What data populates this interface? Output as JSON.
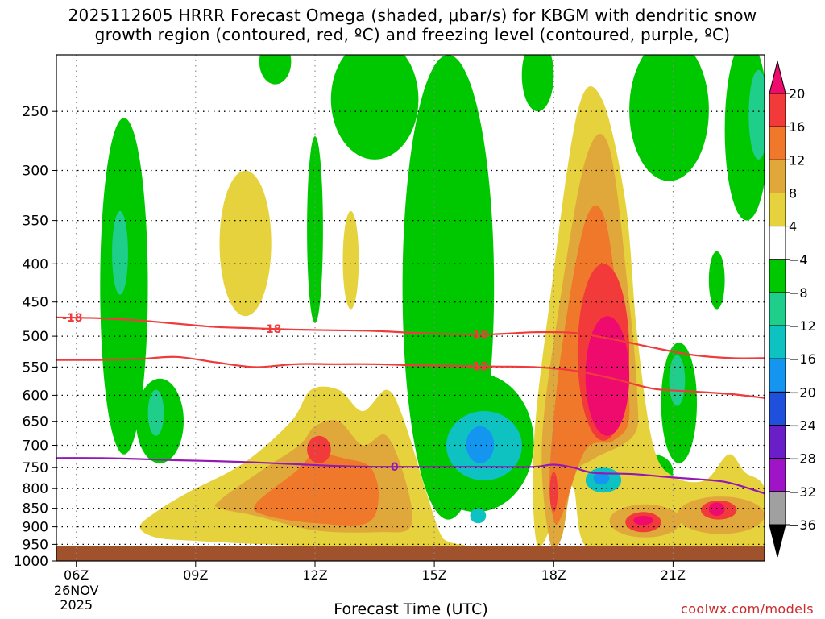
{
  "title_line1": "2025112605 HRRR Forecast Omega (shaded, μbar/s) for KBGM with dendritic snow",
  "title_line2": "growth region (contoured, red, ºC) and freezing level (contoured, purple, ºC)",
  "xlabel": "Forecast Time (UTC)",
  "credit": "coolwx.com/models",
  "chart_data": {
    "type": "heatmap",
    "title": "2025112605 HRRR Forecast Omega (shaded, μbar/s) for KBGM with dendritic snow growth region (contoured, red, ºC) and freezing level (contoured, purple, ºC)",
    "xlabel": "Forecast Time (UTC)",
    "ylabel": "",
    "x_range": [
      5.5,
      23.3
    ],
    "y_range_hpa": [
      1000,
      210
    ],
    "y_scale": "log-pressure",
    "grid": true,
    "x_ticks": [
      {
        "t": 6,
        "label": "06Z",
        "sub": [
          "26NOV",
          "2025"
        ]
      },
      {
        "t": 9,
        "label": "09Z"
      },
      {
        "t": 12,
        "label": "12Z"
      },
      {
        "t": 15,
        "label": "15Z"
      },
      {
        "t": 18,
        "label": "18Z"
      },
      {
        "t": 21,
        "label": "21Z"
      }
    ],
    "y_ticks": [
      250,
      300,
      350,
      400,
      450,
      500,
      550,
      600,
      650,
      700,
      750,
      800,
      850,
      900,
      950,
      1000
    ],
    "terrain_below_hpa": 955,
    "colorbar": {
      "levels": [
        20,
        16,
        12,
        8,
        4,
        -4,
        -8,
        -12,
        -16,
        -20,
        -24,
        -28,
        -32,
        -36
      ],
      "colors": [
        "#ef0a6e",
        "#f23a3a",
        "#f0782a",
        "#e0a83a",
        "#e6d23c",
        "#ffffff",
        "#00c800",
        "#1ece8a",
        "#0fc2c2",
        "#1496f0",
        "#1e50dc",
        "#6a1ec8",
        "#a014c8",
        "#a0a0a0",
        "#000000"
      ]
    },
    "omega_regions": [
      {
        "value": -6,
        "kind": "ellipse",
        "t": [
          6.6,
          7.8
        ],
        "p": [
          720,
          255
        ]
      },
      {
        "value": -10,
        "kind": "ellipse",
        "t": [
          6.9,
          7.3
        ],
        "p": [
          440,
          340
        ]
      },
      {
        "value": -6,
        "kind": "ellipse",
        "t": [
          7.5,
          8.7
        ],
        "p": [
          740,
          570
        ]
      },
      {
        "value": -10,
        "kind": "ellipse",
        "t": [
          7.8,
          8.2
        ],
        "p": [
          680,
          590
        ]
      },
      {
        "value": -6,
        "kind": "ellipse",
        "t": [
          10.6,
          11.4
        ],
        "p": [
          230,
          200
        ]
      },
      {
        "value": -6,
        "kind": "ellipse",
        "t": [
          11.8,
          12.2
        ],
        "p": [
          480,
          270
        ]
      },
      {
        "value": -6,
        "kind": "ellipse",
        "t": [
          12.4,
          14.6
        ],
        "p": [
          290,
          200
        ]
      },
      {
        "value": -6,
        "kind": "ellipse",
        "t": [
          14.2,
          16.5
        ],
        "p": [
          880,
          210
        ]
      },
      {
        "value": -6,
        "kind": "ellipse",
        "t": [
          14.6,
          17.5
        ],
        "p": [
          860,
          560
        ]
      },
      {
        "value": -6,
        "kind": "ellipse",
        "t": [
          17.2,
          18.0
        ],
        "p": [
          250,
          200
        ]
      },
      {
        "value": -6,
        "kind": "ellipse",
        "t": [
          19.9,
          21.9
        ],
        "p": [
          310,
          200
        ]
      },
      {
        "value": -6,
        "kind": "ellipse",
        "t": [
          21.9,
          22.3
        ],
        "p": [
          460,
          385
        ]
      },
      {
        "value": -6,
        "kind": "ellipse",
        "t": [
          22.3,
          23.4
        ],
        "p": [
          350,
          200
        ]
      },
      {
        "value": -12,
        "kind": "ellipse",
        "t": [
          22.9,
          23.4
        ],
        "p": [
          290,
          220
        ]
      },
      {
        "value": -6,
        "kind": "ellipse",
        "t": [
          20.7,
          21.6
        ],
        "p": [
          740,
          510
        ]
      },
      {
        "value": -10,
        "kind": "ellipse",
        "t": [
          20.9,
          21.3
        ],
        "p": [
          620,
          530
        ]
      },
      {
        "value": -6,
        "kind": "ellipse",
        "t": [
          18.8,
          20.0
        ],
        "p": [
          850,
          720
        ]
      },
      {
        "value": -6,
        "kind": "ellipse",
        "t": [
          20.0,
          21.0
        ],
        "p": [
          800,
          720
        ]
      },
      {
        "value": 6,
        "kind": "ellipse",
        "t": [
          9.6,
          10.9
        ],
        "p": [
          470,
          300
        ]
      },
      {
        "value": 6,
        "kind": "ellipse",
        "t": [
          12.7,
          13.1
        ],
        "p": [
          460,
          340
        ]
      },
      {
        "value": 6,
        "kind": "poly",
        "points": [
          [
            8.8,
            810
          ],
          [
            10.2,
            740
          ],
          [
            11.4,
            650
          ],
          [
            11.9,
            590
          ],
          [
            12.6,
            590
          ],
          [
            13.2,
            630
          ],
          [
            13.8,
            590
          ],
          [
            14.2,
            640
          ],
          [
            14.8,
            810
          ],
          [
            15.2,
            930
          ],
          [
            15.6,
            955
          ],
          [
            12.0,
            955
          ],
          [
            9.0,
            940
          ],
          [
            8.0,
            930
          ],
          [
            7.6,
            900
          ],
          [
            8.0,
            860
          ]
        ]
      },
      {
        "value": 10,
        "kind": "poly",
        "points": [
          [
            9.6,
            830
          ],
          [
            10.6,
            760
          ],
          [
            11.6,
            700
          ],
          [
            12.0,
            660
          ],
          [
            12.6,
            650
          ],
          [
            13.2,
            700
          ],
          [
            13.8,
            680
          ],
          [
            14.3,
            790
          ],
          [
            14.4,
            900
          ],
          [
            13.6,
            915
          ],
          [
            12.0,
            910
          ],
          [
            10.5,
            870
          ],
          [
            9.6,
            850
          ]
        ]
      },
      {
        "value": 14,
        "kind": "poly",
        "points": [
          [
            10.5,
            840
          ],
          [
            11.5,
            760
          ],
          [
            12.0,
            720
          ],
          [
            12.8,
            730
          ],
          [
            13.4,
            750
          ],
          [
            13.6,
            820
          ],
          [
            13.3,
            890
          ],
          [
            12.0,
            890
          ],
          [
            10.8,
            870
          ]
        ]
      },
      {
        "value": 18,
        "kind": "ellipse",
        "t": [
          11.8,
          12.4
        ],
        "p": [
          740,
          680
        ]
      },
      {
        "value": 6,
        "kind": "poly",
        "points": [
          [
            17.6,
            955
          ],
          [
            17.5,
            700
          ],
          [
            17.9,
            450
          ],
          [
            18.6,
            250
          ],
          [
            19.2,
            240
          ],
          [
            19.8,
            330
          ],
          [
            20.1,
            500
          ],
          [
            20.5,
            700
          ],
          [
            21.0,
            770
          ],
          [
            21.8,
            780
          ],
          [
            22.4,
            720
          ],
          [
            22.8,
            760
          ],
          [
            23.3,
            800
          ],
          [
            23.3,
            955
          ],
          [
            20.0,
            955
          ],
          [
            18.8,
            955
          ],
          [
            18.5,
            800
          ],
          [
            18.2,
            830
          ]
        ]
      },
      {
        "value": 10,
        "kind": "poly",
        "points": [
          [
            17.9,
            940
          ],
          [
            17.7,
            700
          ],
          [
            18.1,
            470
          ],
          [
            18.8,
            290
          ],
          [
            19.4,
            280
          ],
          [
            19.9,
            450
          ],
          [
            20.1,
            600
          ],
          [
            20.0,
            680
          ],
          [
            19.0,
            730
          ],
          [
            18.5,
            770
          ],
          [
            18.2,
            930
          ]
        ]
      },
      {
        "value": 14,
        "kind": "poly",
        "points": [
          [
            18.0,
            880
          ],
          [
            17.9,
            760
          ],
          [
            18.2,
            520
          ],
          [
            18.8,
            350
          ],
          [
            19.3,
            350
          ],
          [
            19.7,
            500
          ],
          [
            19.9,
            640
          ],
          [
            19.5,
            690
          ],
          [
            18.8,
            710
          ],
          [
            18.2,
            870
          ]
        ]
      },
      {
        "value": 18,
        "kind": "ellipse",
        "t": [
          18.6,
          19.9
        ],
        "p": [
          690,
          400
        ]
      },
      {
        "value": 22,
        "kind": "ellipse",
        "t": [
          18.8,
          19.9
        ],
        "p": [
          680,
          470
        ]
      },
      {
        "value": 18,
        "kind": "ellipse",
        "t": [
          17.9,
          18.1
        ],
        "p": [
          860,
          760
        ]
      },
      {
        "value": 10,
        "kind": "ellipse",
        "t": [
          19.4,
          21.2
        ],
        "p": [
          930,
          840
        ]
      },
      {
        "value": 18,
        "kind": "ellipse",
        "t": [
          19.8,
          20.7
        ],
        "p": [
          915,
          860
        ]
      },
      {
        "value": 22,
        "kind": "ellipse",
        "t": [
          20.0,
          20.5
        ],
        "p": [
          895,
          870
        ]
      },
      {
        "value": 10,
        "kind": "ellipse",
        "t": [
          21.1,
          23.3
        ],
        "p": [
          920,
          820
        ]
      },
      {
        "value": 18,
        "kind": "ellipse",
        "t": [
          21.7,
          22.6
        ],
        "p": [
          880,
          830
        ]
      },
      {
        "value": 22,
        "kind": "ellipse",
        "t": [
          21.9,
          22.3
        ],
        "p": [
          870,
          835
        ]
      },
      {
        "value": -14,
        "kind": "ellipse",
        "t": [
          15.3,
          17.2
        ],
        "p": [
          780,
          630
        ]
      },
      {
        "value": -18,
        "kind": "ellipse",
        "t": [
          15.8,
          16.5
        ],
        "p": [
          740,
          660
        ]
      },
      {
        "value": -14,
        "kind": "ellipse",
        "t": [
          18.8,
          19.7
        ],
        "p": [
          810,
          750
        ]
      },
      {
        "value": -18,
        "kind": "ellipse",
        "t": [
          19.0,
          19.4
        ],
        "p": [
          790,
          760
        ]
      },
      {
        "value": -14,
        "kind": "ellipse",
        "t": [
          15.9,
          16.3
        ],
        "p": [
          890,
          850
        ]
      }
    ],
    "contours": [
      {
        "name": "-18",
        "color": "#ef3b3b",
        "label_at": [
          5.9,
          10.9,
          16.1
        ],
        "points": [
          [
            5.5,
            472
          ],
          [
            6.5,
            473
          ],
          [
            7.5,
            476
          ],
          [
            8.5,
            481
          ],
          [
            9.5,
            486
          ],
          [
            10.5,
            488
          ],
          [
            11.5,
            490
          ],
          [
            12.5,
            491
          ],
          [
            13.5,
            492
          ],
          [
            14.5,
            495
          ],
          [
            15.5,
            497
          ],
          [
            16.5,
            497
          ],
          [
            17.5,
            494
          ],
          [
            18.5,
            495
          ],
          [
            19.5,
            505
          ],
          [
            20.5,
            518
          ],
          [
            21.5,
            530
          ],
          [
            22.5,
            535
          ],
          [
            23.3,
            535
          ]
        ]
      },
      {
        "name": "-12",
        "color": "#ef3b3b",
        "label_at": [
          16.1
        ],
        "points": [
          [
            5.5,
            538
          ],
          [
            6.5,
            538
          ],
          [
            7.5,
            537
          ],
          [
            8.5,
            533
          ],
          [
            9.5,
            542
          ],
          [
            10.5,
            550
          ],
          [
            11.5,
            545
          ],
          [
            12.5,
            545
          ],
          [
            13.5,
            545
          ],
          [
            14.5,
            547
          ],
          [
            15.5,
            548
          ],
          [
            16.5,
            549
          ],
          [
            17.5,
            550
          ],
          [
            18.5,
            556
          ],
          [
            19.5,
            570
          ],
          [
            20.5,
            588
          ],
          [
            21.5,
            593
          ],
          [
            22.5,
            598
          ],
          [
            23.3,
            605
          ]
        ]
      },
      {
        "name": "0",
        "color": "#9419b4",
        "label_at": [
          14.0
        ],
        "points": [
          [
            5.5,
            728
          ],
          [
            6.5,
            728
          ],
          [
            7.5,
            730
          ],
          [
            8.5,
            733
          ],
          [
            9.5,
            735
          ],
          [
            10.5,
            738
          ],
          [
            11.5,
            742
          ],
          [
            12.5,
            746
          ],
          [
            13.5,
            748
          ],
          [
            14.5,
            748
          ],
          [
            15.5,
            748
          ],
          [
            16.5,
            748
          ],
          [
            17.5,
            748
          ],
          [
            18.0,
            743
          ],
          [
            18.5,
            750
          ],
          [
            19.0,
            762
          ],
          [
            20.0,
            765
          ],
          [
            21.0,
            773
          ],
          [
            22.0,
            780
          ],
          [
            22.5,
            788
          ],
          [
            23.3,
            812
          ]
        ]
      }
    ]
  }
}
